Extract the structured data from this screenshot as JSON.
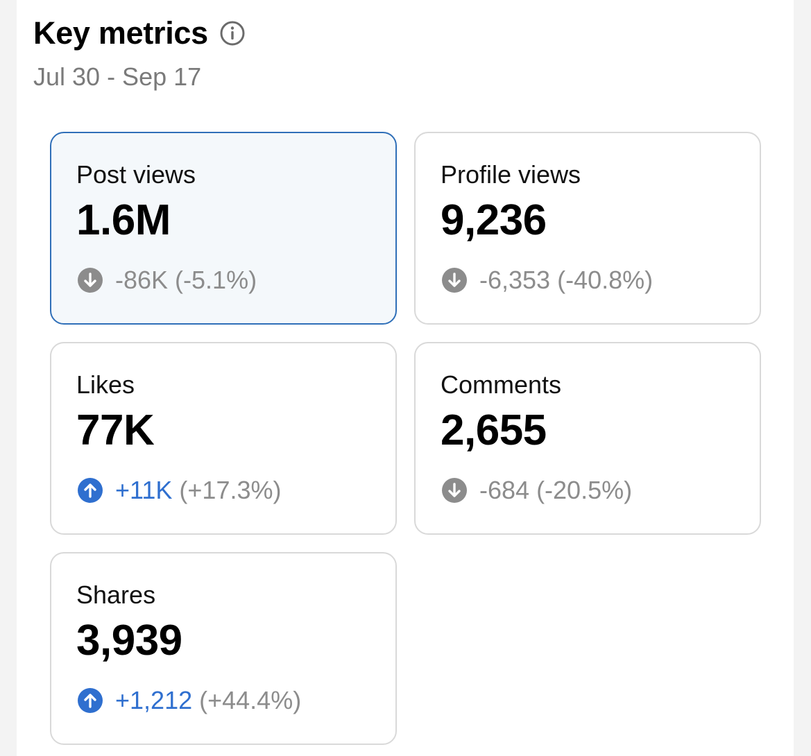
{
  "header": {
    "title": "Key metrics",
    "date_range": "Jul 30 - Sep 17",
    "info_icon": "info-icon"
  },
  "colors": {
    "up": "#2f6fcf",
    "down": "#8c8c8c",
    "selected_border": "#2f6fb8"
  },
  "metrics": [
    {
      "label": "Post views",
      "value": "1.6M",
      "change": "-86K",
      "percent": "(-5.1%)",
      "direction": "down",
      "icon": "arrow-down-circle-icon",
      "selected": true
    },
    {
      "label": "Profile views",
      "value": "9,236",
      "change": "-6,353",
      "percent": "(-40.8%)",
      "direction": "down",
      "icon": "arrow-down-circle-icon",
      "selected": false
    },
    {
      "label": "Likes",
      "value": "77K",
      "change": "+11K",
      "percent": "(+17.3%)",
      "direction": "up",
      "icon": "arrow-up-circle-icon",
      "selected": false
    },
    {
      "label": "Comments",
      "value": "2,655",
      "change": "-684",
      "percent": "(-20.5%)",
      "direction": "down",
      "icon": "arrow-down-circle-icon",
      "selected": false
    },
    {
      "label": "Shares",
      "value": "3,939",
      "change": "+1,212",
      "percent": "(+44.4%)",
      "direction": "up",
      "icon": "arrow-up-circle-icon",
      "selected": false
    }
  ]
}
